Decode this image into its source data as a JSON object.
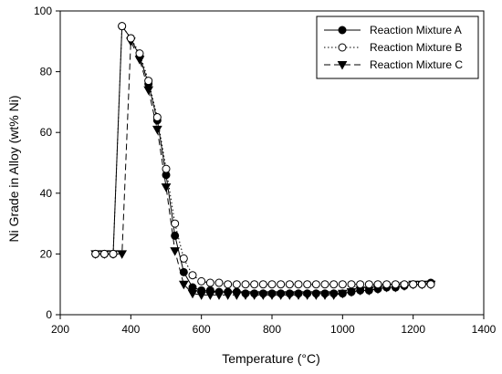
{
  "chart_data": {
    "type": "line",
    "title": "",
    "xlabel": "Temperature (°C)",
    "ylabel": "Ni Grade in Alloy (wt% Ni)",
    "xlim": [
      200,
      1400
    ],
    "ylim": [
      0,
      100
    ],
    "xticks": [
      "200",
      "400",
      "600",
      "800",
      "1000",
      "1200",
      "1400"
    ],
    "yticks": [
      "0",
      "20",
      "40",
      "60",
      "80",
      "100"
    ],
    "grid": false,
    "legend_position": "top-right",
    "series": [
      {
        "name": "Reaction Mixture A",
        "marker": "filled-circle",
        "line": "solid",
        "color": "#000000",
        "x": [
          300,
          325,
          350,
          375,
          400,
          425,
          450,
          475,
          500,
          525,
          550,
          575,
          600,
          625,
          650,
          675,
          700,
          725,
          750,
          775,
          800,
          825,
          850,
          875,
          900,
          925,
          950,
          975,
          1000,
          1025,
          1050,
          1075,
          1100,
          1125,
          1150,
          1175,
          1200,
          1225,
          1250
        ],
        "y": [
          20,
          20,
          20,
          95,
          91,
          85,
          76,
          64,
          46,
          26,
          14,
          9,
          8,
          8,
          7.5,
          7.5,
          7.5,
          7,
          7,
          7,
          7,
          7,
          7,
          7,
          7,
          7,
          7,
          7,
          7,
          7.5,
          8,
          8,
          8.5,
          9,
          9,
          9.5,
          10,
          10,
          10.5
        ]
      },
      {
        "name": "Reaction Mixture B",
        "marker": "open-circle",
        "line": "dotted",
        "color": "#000000",
        "x": [
          300,
          325,
          350,
          375,
          400,
          425,
          450,
          475,
          500,
          525,
          550,
          575,
          600,
          625,
          650,
          675,
          700,
          725,
          750,
          775,
          800,
          825,
          850,
          875,
          900,
          925,
          950,
          975,
          1000,
          1025,
          1050,
          1075,
          1100,
          1125,
          1150,
          1175,
          1200,
          1225,
          1250
        ],
        "y": [
          20,
          20,
          20,
          95,
          91,
          86,
          77,
          65,
          48,
          30,
          18.5,
          13,
          11,
          10.5,
          10.5,
          10,
          10,
          10,
          10,
          10,
          10,
          10,
          10,
          10,
          10,
          10,
          10,
          10,
          10,
          10,
          10,
          10,
          10,
          10,
          10,
          10,
          10,
          10,
          10
        ]
      },
      {
        "name": "Reaction Mixture C",
        "marker": "filled-triangle-down",
        "line": "dashed",
        "color": "#000000",
        "x": [
          300,
          325,
          350,
          375,
          400,
          425,
          450,
          475,
          500,
          525,
          550,
          575,
          600,
          625,
          650,
          675,
          700,
          725,
          750,
          775,
          800,
          825,
          850,
          875,
          900,
          925,
          950,
          975,
          1000,
          1025,
          1050,
          1075,
          1100,
          1125,
          1150,
          1175,
          1200,
          1225,
          1250
        ],
        "y": [
          20,
          20,
          20,
          20,
          90,
          84,
          74,
          61,
          42,
          21,
          10,
          7,
          6.5,
          6.5,
          6.5,
          6.5,
          6.5,
          6.5,
          6.5,
          6.5,
          6.5,
          6.5,
          6.5,
          6.5,
          6.5,
          6.5,
          6.5,
          6.5,
          7,
          7.5,
          8,
          8,
          8.5,
          9,
          9,
          9.5,
          10,
          10,
          10
        ]
      }
    ]
  }
}
